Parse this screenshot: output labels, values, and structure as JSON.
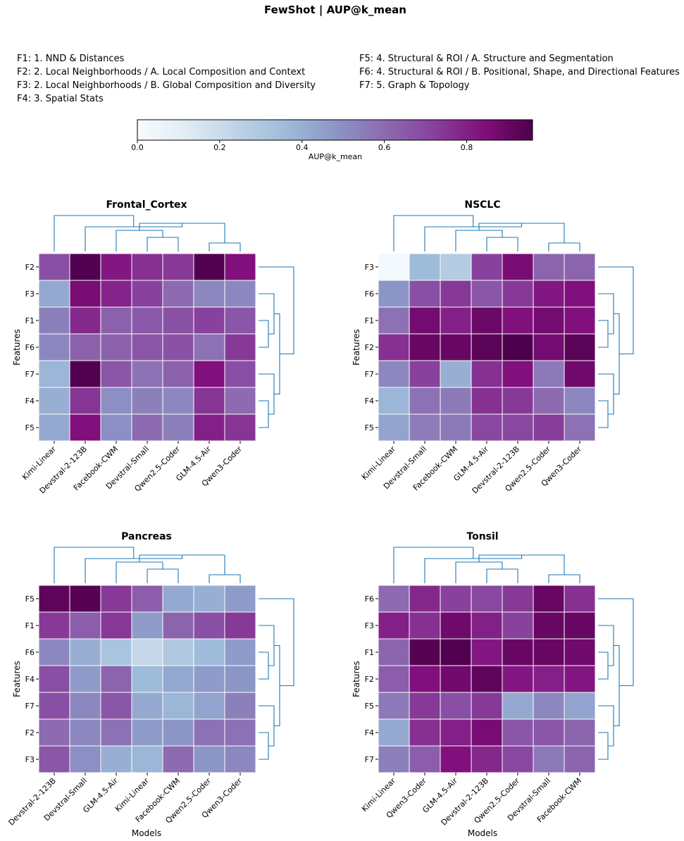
{
  "figure": {
    "title": "FewShot | AUP@k_mean",
    "legend_left": [
      "F1: 1. NND & Distances",
      "F2: 2. Local Neighborhoods / A. Local Composition and Context",
      "F3: 2. Local Neighborhoods / B. Global Composition and Diversity",
      "F4: 3. Spatial Stats"
    ],
    "legend_right": [
      "F5: 4. Structural & ROI / A. Structure and Segmentation",
      "F6: 4. Structural & ROI / B. Positional, Shape, and Directional Features",
      "F7: 5. Graph & Topology"
    ],
    "colorbar": {
      "label": "AUP@k_mean",
      "min": 0.0,
      "max": 0.96,
      "ticks": [
        "0.0",
        "0.2",
        "0.4",
        "0.6",
        "0.8"
      ],
      "colormap": "BuPu",
      "stops": [
        "#f7fcfd",
        "#e0ecf4",
        "#bfd3e6",
        "#9ebcda",
        "#8c96c6",
        "#8c6bb1",
        "#88419d",
        "#810f7c",
        "#4d004b"
      ]
    },
    "ylabel": "Features",
    "xlabel": "Models",
    "grid_color": "#ffffff",
    "dendrogram_color": "#1f77b4"
  },
  "chart_data": [
    {
      "type": "heatmap",
      "title": "Frontal_Cortex",
      "ylabel": "Features",
      "xlabel": "",
      "columns": [
        "Kimi-Linear",
        "Devstral-2-123B",
        "Facebook-CWM",
        "Devstral-Small",
        "Qwen2.5-Coder",
        "GLM-4.5-Air",
        "Qwen3-Coder"
      ],
      "rows": [
        "F2",
        "F3",
        "F1",
        "F6",
        "F7",
        "F4",
        "F5"
      ],
      "values": [
        [
          0.68,
          0.95,
          0.82,
          0.76,
          0.74,
          0.95,
          0.84
        ],
        [
          0.42,
          0.86,
          0.79,
          0.72,
          0.6,
          0.52,
          0.52
        ],
        [
          0.54,
          0.78,
          0.63,
          0.65,
          0.67,
          0.72,
          0.66
        ],
        [
          0.52,
          0.63,
          0.63,
          0.66,
          0.67,
          0.58,
          0.74
        ],
        [
          0.38,
          0.95,
          0.66,
          0.58,
          0.63,
          0.84,
          0.68
        ],
        [
          0.4,
          0.75,
          0.5,
          0.54,
          0.52,
          0.75,
          0.6
        ],
        [
          0.42,
          0.84,
          0.5,
          0.6,
          0.54,
          0.8,
          0.75
        ]
      ]
    },
    {
      "type": "heatmap",
      "title": "NSCLC",
      "ylabel": "Features",
      "xlabel": "",
      "columns": [
        "Kimi-Linear",
        "Devstral-Small",
        "Facebook-CWM",
        "GLM-4.5-Air",
        "Devstral-2-123B",
        "Qwen2.5-Coder",
        "Qwen3-Coder"
      ],
      "rows": [
        "F3",
        "F6",
        "F1",
        "F2",
        "F7",
        "F4",
        "F5"
      ],
      "values": [
        [
          0.02,
          0.36,
          0.28,
          0.72,
          0.86,
          0.62,
          0.62
        ],
        [
          0.48,
          0.68,
          0.74,
          0.66,
          0.74,
          0.82,
          0.84
        ],
        [
          0.58,
          0.87,
          0.8,
          0.89,
          0.84,
          0.87,
          0.84
        ],
        [
          0.76,
          0.9,
          0.9,
          0.93,
          0.96,
          0.87,
          0.93
        ],
        [
          0.52,
          0.72,
          0.4,
          0.76,
          0.84,
          0.56,
          0.88
        ],
        [
          0.38,
          0.58,
          0.56,
          0.76,
          0.74,
          0.6,
          0.52
        ],
        [
          0.44,
          0.55,
          0.56,
          0.7,
          0.7,
          0.73,
          0.58
        ]
      ]
    },
    {
      "type": "heatmap",
      "title": "Pancreas",
      "ylabel": "Features",
      "xlabel": "Models",
      "columns": [
        "Devstral-2-123B",
        "Devstral-Small",
        "GLM-4.5-Air",
        "Kimi-Linear",
        "Facebook-CWM",
        "Qwen2.5-Coder",
        "Qwen3-Coder"
      ],
      "rows": [
        "F5",
        "F1",
        "F6",
        "F4",
        "F7",
        "F2",
        "F3"
      ],
      "values": [
        [
          0.92,
          0.94,
          0.74,
          0.64,
          0.42,
          0.4,
          0.46
        ],
        [
          0.74,
          0.64,
          0.74,
          0.46,
          0.62,
          0.68,
          0.74
        ],
        [
          0.52,
          0.4,
          0.32,
          0.22,
          0.3,
          0.36,
          0.46
        ],
        [
          0.68,
          0.46,
          0.62,
          0.36,
          0.42,
          0.46,
          0.48
        ],
        [
          0.68,
          0.52,
          0.66,
          0.42,
          0.38,
          0.44,
          0.54
        ],
        [
          0.6,
          0.52,
          0.58,
          0.46,
          0.48,
          0.58,
          0.58
        ],
        [
          0.66,
          0.5,
          0.4,
          0.38,
          0.6,
          0.48,
          0.52
        ]
      ]
    },
    {
      "type": "heatmap",
      "title": "Tonsil",
      "ylabel": "Features",
      "xlabel": "Models",
      "columns": [
        "Kimi-Linear",
        "Qwen3-Coder",
        "GLM-4.5-Air",
        "Devstral-2-123B",
        "Qwen2.5-Coder",
        "Devstral-Small",
        "Facebook-CWM"
      ],
      "rows": [
        "F6",
        "F3",
        "F1",
        "F2",
        "F5",
        "F4",
        "F7"
      ],
      "values": [
        [
          0.6,
          0.78,
          0.72,
          0.7,
          0.74,
          0.9,
          0.76
        ],
        [
          0.8,
          0.76,
          0.88,
          0.8,
          0.72,
          0.9,
          0.9
        ],
        [
          0.62,
          0.94,
          0.95,
          0.82,
          0.9,
          0.9,
          0.88
        ],
        [
          0.64,
          0.84,
          0.88,
          0.92,
          0.82,
          0.8,
          0.82
        ],
        [
          0.56,
          0.74,
          0.68,
          0.74,
          0.42,
          0.52,
          0.44
        ],
        [
          0.42,
          0.76,
          0.8,
          0.86,
          0.66,
          0.66,
          0.62
        ],
        [
          0.54,
          0.64,
          0.84,
          0.78,
          0.7,
          0.56,
          0.62
        ]
      ]
    }
  ]
}
